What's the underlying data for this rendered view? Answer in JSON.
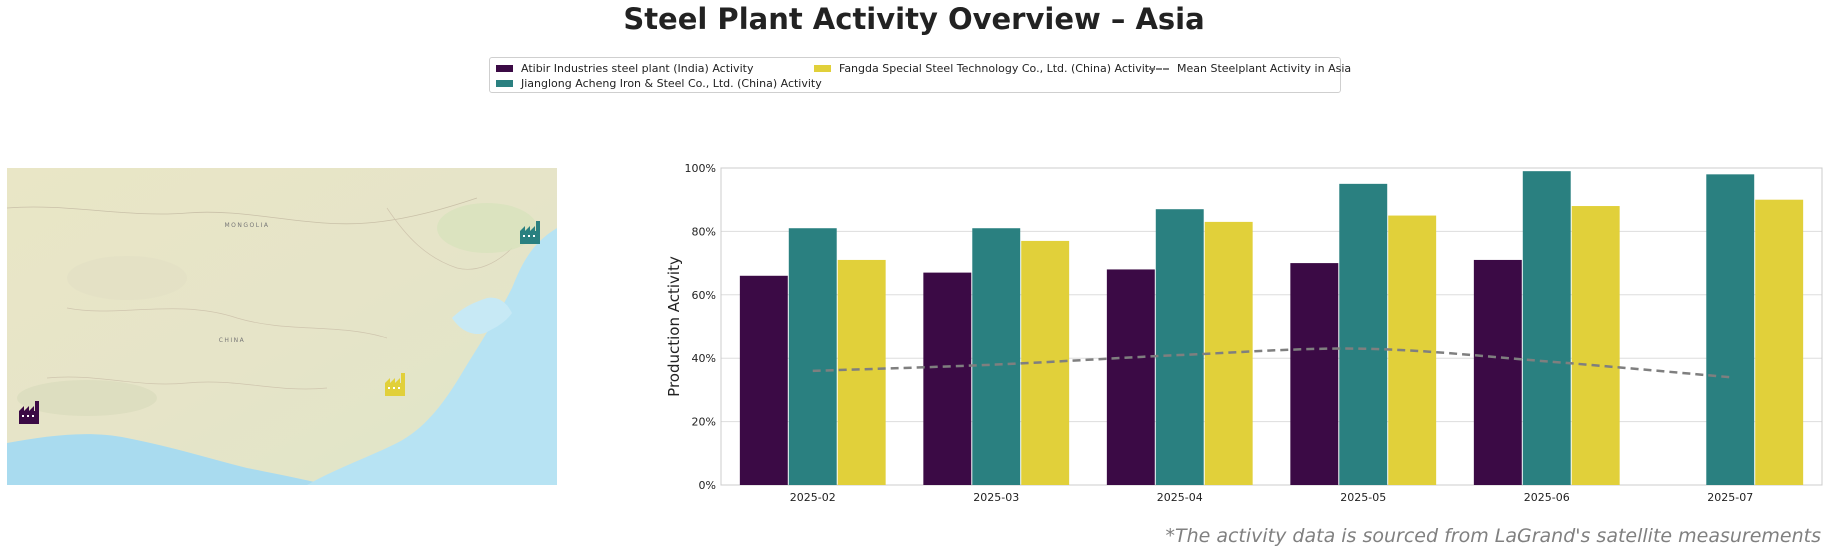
{
  "title": "Steel Plant Activity Overview – Asia",
  "footer": "*The activity data is sourced from LaGrand's satellite measurements",
  "legend": {
    "items": [
      {
        "label": "Atibir Industries steel plant (India) Activity",
        "color": "#3b0a45"
      },
      {
        "label": "Jianglong Acheng Iron & Steel Co., Ltd. (China) Activity",
        "color": "#2a8080"
      },
      {
        "label": "Fangda Special Steel Technology Co., Ltd. (China) Activity",
        "color": "#e1d03a"
      },
      {
        "label": "Mean Steelplant Activity in Asia",
        "color": "#7f7f7f"
      }
    ]
  },
  "map": {
    "labels": {
      "mongolia": "MONGOLIA",
      "china": "CHINA"
    },
    "markers": [
      {
        "name": "Atibir Industries steel plant (India)",
        "color": "#3b0a45",
        "icon": "factory-icon"
      },
      {
        "name": "Jianglong Acheng Iron & Steel Co., Ltd. (China)",
        "color": "#2a8080",
        "icon": "factory-icon"
      },
      {
        "name": "Fangda Special Steel Technology Co., Ltd. (China)",
        "color": "#e1d03a",
        "icon": "factory-icon"
      }
    ]
  },
  "chart_data": {
    "type": "bar",
    "ylabel": "Production Activity",
    "xlabel": "",
    "ylim": [
      0,
      100
    ],
    "ytick_labels": [
      "0%",
      "20%",
      "40%",
      "60%",
      "80%",
      "100%"
    ],
    "yticks": [
      0,
      20,
      40,
      60,
      80,
      100
    ],
    "categories": [
      "2025-02",
      "2025-03",
      "2025-04",
      "2025-05",
      "2025-06",
      "2025-07"
    ],
    "series": [
      {
        "name": "Atibir Industries steel plant (India) Activity",
        "color": "#3b0a45",
        "values": [
          66,
          67,
          68,
          70,
          71,
          null
        ]
      },
      {
        "name": "Jianglong Acheng Iron & Steel Co., Ltd. (China) Activity",
        "color": "#2a8080",
        "values": [
          81,
          81,
          87,
          95,
          99,
          98
        ]
      },
      {
        "name": "Fangda Special Steel Technology Co., Ltd. (China) Activity",
        "color": "#e1d03a",
        "values": [
          71,
          77,
          83,
          85,
          88,
          90
        ]
      }
    ],
    "mean_line": {
      "name": "Mean Steelplant Activity in Asia",
      "color": "#7f7f7f",
      "style": "dashed",
      "values": [
        36,
        38,
        41,
        43,
        39,
        34
      ]
    },
    "grid": "horizontal"
  }
}
